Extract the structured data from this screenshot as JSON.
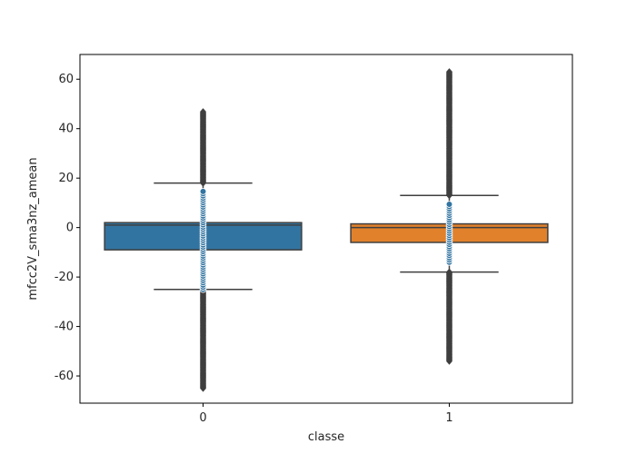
{
  "chart_data": {
    "type": "boxplot",
    "xlabel": "classe",
    "ylabel": "mfcc2V_sma3nz_amean",
    "categories": [
      "0",
      "1"
    ],
    "ylim": [
      -71,
      70
    ],
    "yticks": [
      -60,
      -40,
      -20,
      0,
      20,
      40,
      60
    ],
    "grid": false,
    "boxes": [
      {
        "category": "0",
        "color": "#3274a1",
        "q1": -9,
        "median": 1,
        "q3": 2,
        "whisker_low": -25,
        "whisker_high": 18,
        "outlier_low_range": [
          -65,
          -25
        ],
        "outlier_high_range": [
          18,
          47
        ],
        "strip_range": [
          -25,
          15
        ]
      },
      {
        "category": "1",
        "color": "#e1812c",
        "q1": -6,
        "median": 0,
        "q3": 1.5,
        "whisker_low": -18,
        "whisker_high": 13,
        "outlier_low_range": [
          -54,
          -18
        ],
        "outlier_high_range": [
          13,
          63
        ],
        "strip_range": [
          -14,
          10
        ]
      }
    ],
    "strip_color": "#3274a1"
  }
}
